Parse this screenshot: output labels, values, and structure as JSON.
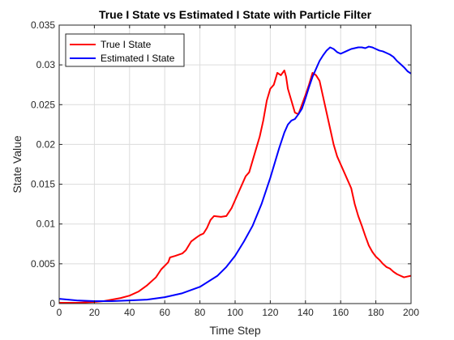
{
  "chart_data": {
    "type": "line",
    "title": "True I State vs Estimated I State with Particle Filter",
    "xlabel": "Time Step",
    "ylabel": "State Value",
    "xlim": [
      0,
      200
    ],
    "ylim": [
      0,
      0.035
    ],
    "xticks": [
      0,
      20,
      40,
      60,
      80,
      100,
      120,
      140,
      160,
      180,
      200
    ],
    "xtick_labels": [
      "0",
      "20",
      "40",
      "60",
      "80",
      "100",
      "120",
      "140",
      "160",
      "180",
      "200"
    ],
    "yticks": [
      0,
      0.005,
      0.01,
      0.015,
      0.02,
      0.025,
      0.03,
      0.035
    ],
    "ytick_labels": [
      "0",
      "0.005",
      "0.01",
      "0.015",
      "0.02",
      "0.025",
      "0.03",
      "0.035"
    ],
    "grid": true,
    "legend_position": "top-left",
    "series": [
      {
        "name": "True I State",
        "color": "#ff0000",
        "points": [
          [
            0,
            0.0001
          ],
          [
            10,
            0.0001
          ],
          [
            20,
            0.0002
          ],
          [
            25,
            0.0003
          ],
          [
            30,
            0.0005
          ],
          [
            35,
            0.0007
          ],
          [
            40,
            0.001
          ],
          [
            45,
            0.0015
          ],
          [
            50,
            0.0023
          ],
          [
            55,
            0.0033
          ],
          [
            58,
            0.0043
          ],
          [
            62,
            0.0052
          ],
          [
            63,
            0.0058
          ],
          [
            66,
            0.006
          ],
          [
            70,
            0.0063
          ],
          [
            72,
            0.0067
          ],
          [
            75,
            0.0078
          ],
          [
            78,
            0.0083
          ],
          [
            80,
            0.0086
          ],
          [
            82,
            0.0088
          ],
          [
            84,
            0.0095
          ],
          [
            86,
            0.0105
          ],
          [
            88,
            0.011
          ],
          [
            92,
            0.0109
          ],
          [
            95,
            0.011
          ],
          [
            98,
            0.012
          ],
          [
            100,
            0.013
          ],
          [
            102,
            0.014
          ],
          [
            104,
            0.015
          ],
          [
            106,
            0.016
          ],
          [
            108,
            0.0165
          ],
          [
            110,
            0.018
          ],
          [
            112,
            0.0195
          ],
          [
            114,
            0.021
          ],
          [
            116,
            0.023
          ],
          [
            118,
            0.0255
          ],
          [
            120,
            0.027
          ],
          [
            122,
            0.0275
          ],
          [
            124,
            0.029
          ],
          [
            126,
            0.0287
          ],
          [
            128,
            0.0293
          ],
          [
            129,
            0.0285
          ],
          [
            130,
            0.027
          ],
          [
            132,
            0.0255
          ],
          [
            134,
            0.024
          ],
          [
            136,
            0.0238
          ],
          [
            138,
            0.025
          ],
          [
            140,
            0.0262
          ],
          [
            142,
            0.0275
          ],
          [
            144,
            0.029
          ],
          [
            146,
            0.0287
          ],
          [
            148,
            0.028
          ],
          [
            150,
            0.026
          ],
          [
            152,
            0.024
          ],
          [
            154,
            0.022
          ],
          [
            156,
            0.02
          ],
          [
            158,
            0.0185
          ],
          [
            160,
            0.0175
          ],
          [
            162,
            0.0165
          ],
          [
            164,
            0.0155
          ],
          [
            166,
            0.0145
          ],
          [
            168,
            0.0125
          ],
          [
            170,
            0.011
          ],
          [
            172,
            0.0098
          ],
          [
            174,
            0.0085
          ],
          [
            176,
            0.0073
          ],
          [
            178,
            0.0065
          ],
          [
            180,
            0.0059
          ],
          [
            182,
            0.0055
          ],
          [
            184,
            0.005
          ],
          [
            186,
            0.0046
          ],
          [
            188,
            0.0044
          ],
          [
            190,
            0.004
          ],
          [
            192,
            0.0037
          ],
          [
            194,
            0.0035
          ],
          [
            196,
            0.0033
          ],
          [
            198,
            0.0034
          ],
          [
            200,
            0.0035
          ]
        ]
      },
      {
        "name": "Estimated I State",
        "color": "#0000ff",
        "points": [
          [
            0,
            0.0006
          ],
          [
            10,
            0.0004
          ],
          [
            20,
            0.0003
          ],
          [
            30,
            0.0003
          ],
          [
            40,
            0.0004
          ],
          [
            50,
            0.0005
          ],
          [
            60,
            0.0008
          ],
          [
            70,
            0.0013
          ],
          [
            80,
            0.0021
          ],
          [
            90,
            0.0035
          ],
          [
            95,
            0.0046
          ],
          [
            100,
            0.006
          ],
          [
            105,
            0.0078
          ],
          [
            110,
            0.0098
          ],
          [
            115,
            0.0125
          ],
          [
            120,
            0.0158
          ],
          [
            125,
            0.0195
          ],
          [
            128,
            0.0215
          ],
          [
            130,
            0.0225
          ],
          [
            132,
            0.023
          ],
          [
            134,
            0.0232
          ],
          [
            136,
            0.0238
          ],
          [
            138,
            0.0245
          ],
          [
            140,
            0.0258
          ],
          [
            142,
            0.0272
          ],
          [
            144,
            0.0285
          ],
          [
            146,
            0.0295
          ],
          [
            148,
            0.0305
          ],
          [
            150,
            0.0312
          ],
          [
            152,
            0.0318
          ],
          [
            154,
            0.0322
          ],
          [
            156,
            0.032
          ],
          [
            158,
            0.0316
          ],
          [
            160,
            0.0314
          ],
          [
            162,
            0.0316
          ],
          [
            164,
            0.0318
          ],
          [
            166,
            0.032
          ],
          [
            168,
            0.0321
          ],
          [
            170,
            0.0322
          ],
          [
            172,
            0.0322
          ],
          [
            174,
            0.0321
          ],
          [
            176,
            0.0323
          ],
          [
            178,
            0.0322
          ],
          [
            180,
            0.032
          ],
          [
            182,
            0.0318
          ],
          [
            184,
            0.0317
          ],
          [
            186,
            0.0315
          ],
          [
            188,
            0.0313
          ],
          [
            190,
            0.031
          ],
          [
            192,
            0.0305
          ],
          [
            194,
            0.0301
          ],
          [
            196,
            0.0297
          ],
          [
            198,
            0.0292
          ],
          [
            200,
            0.0289
          ]
        ]
      }
    ]
  }
}
